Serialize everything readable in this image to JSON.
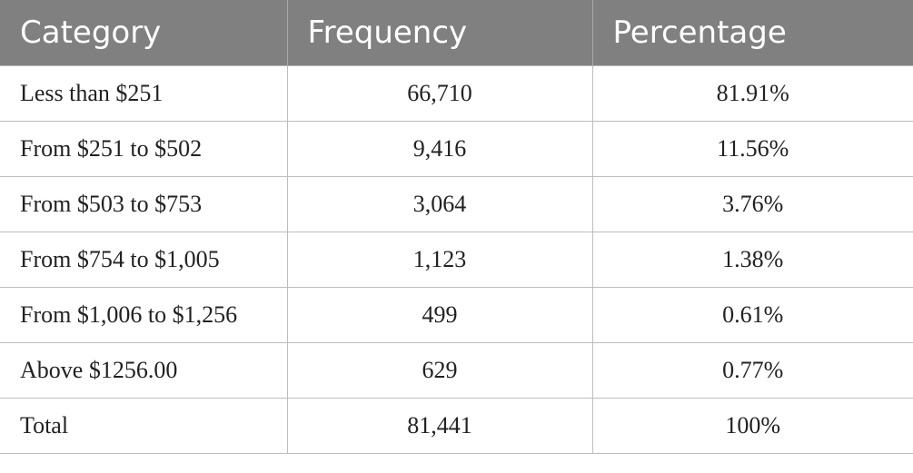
{
  "table": {
    "columns": [
      "Category",
      "Frequency",
      "Percentage"
    ],
    "rows": [
      [
        "Less than $251",
        "66,710",
        "81.91%"
      ],
      [
        "From $251 to $502",
        "9,416",
        "11.56%"
      ],
      [
        "From $503 to $753",
        "3,064",
        "3.76%"
      ],
      [
        "From $754 to $1,005",
        "1,123",
        "1.38%"
      ],
      [
        "From $1,006 to $1,256",
        "499",
        "0.61%"
      ],
      [
        "Above $1256.00",
        "629",
        "0.77%"
      ],
      [
        "Total",
        "81,441",
        "100%"
      ]
    ]
  }
}
